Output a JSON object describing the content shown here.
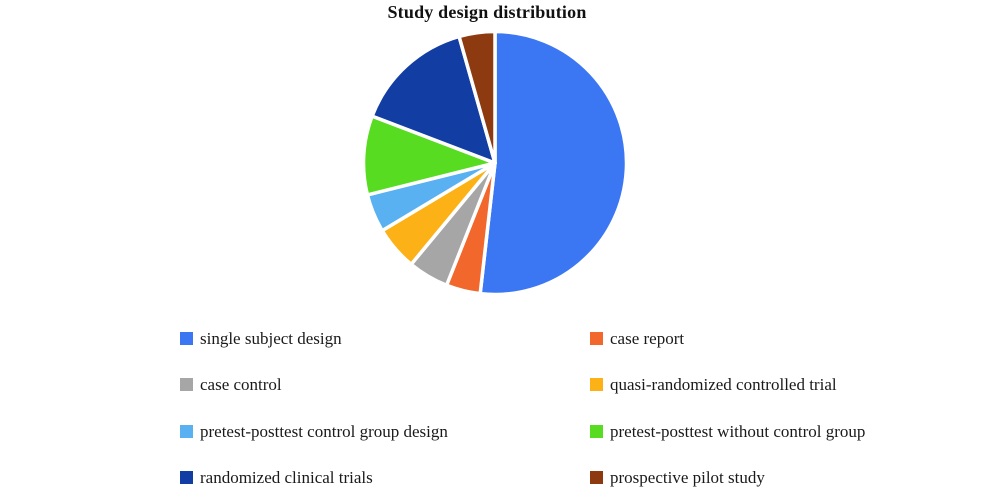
{
  "chart_data": {
    "type": "pie",
    "title": "Study design distribution",
    "start_angle_deg": 0,
    "direction": "clockwise",
    "donut": false,
    "data_labels_shown": false,
    "slice_gap_color": "#ffffff",
    "legend_position": "bottom",
    "legend_columns": 2,
    "background_color": "#ffffff",
    "slices": [
      {
        "label": "single subject design",
        "percent": 51.8,
        "color": "#3B77F3"
      },
      {
        "label": "case report",
        "percent": 4.2,
        "color": "#F2672B"
      },
      {
        "label": "case control",
        "percent": 5.0,
        "color": "#A6A6A6"
      },
      {
        "label": "quasi-randomized controlled trial",
        "percent": 5.4,
        "color": "#FCB116"
      },
      {
        "label": "pretest-posttest control group design",
        "percent": 4.7,
        "color": "#5AB1F2"
      },
      {
        "label": "pretest-posttest without control group",
        "percent": 9.7,
        "color": "#58DC22"
      },
      {
        "label": "randomized clinical trials",
        "percent": 14.8,
        "color": "#123DA3"
      },
      {
        "label": "prospective pilot study",
        "percent": 4.4,
        "color": "#8E3A10"
      }
    ]
  }
}
